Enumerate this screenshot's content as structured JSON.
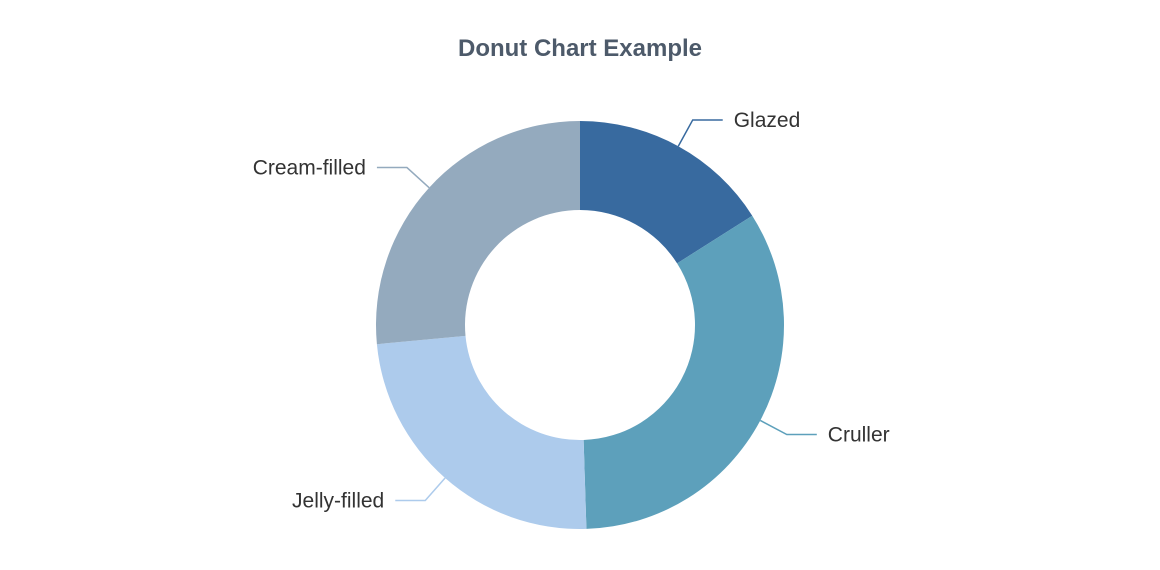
{
  "chart_data": {
    "type": "pie",
    "variant": "donut",
    "title": "Donut Chart Example",
    "categories": [
      "Glazed",
      "Cruller",
      "Jelly-filled",
      "Cream-filled"
    ],
    "values": [
      16,
      33.5,
      24,
      26.5
    ],
    "colors": [
      "#386a9f",
      "#5da0bb",
      "#adcbec",
      "#94aabe"
    ],
    "legend": "none"
  }
}
